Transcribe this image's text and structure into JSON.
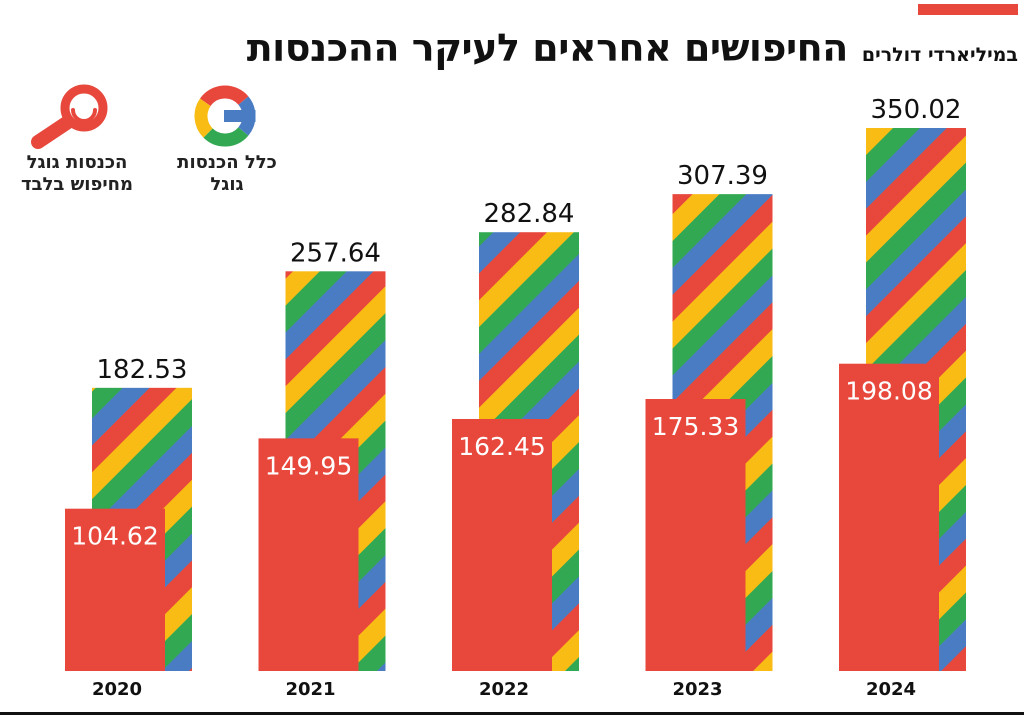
{
  "title": "החיפושים אחראים לעיקר ההכנסות",
  "subtitle": "במיליארדי דולרים",
  "colors": {
    "accent": "#E8473C",
    "search_red": "#E8473C",
    "stripe_red": "#E8473C",
    "stripe_yellow": "#F9BC15",
    "stripe_green": "#33A853",
    "stripe_blue": "#4A7CC4",
    "text": "#111111"
  },
  "legend": [
    {
      "label": "כלל הכנסות גוגל",
      "icon": "google-g-icon"
    },
    {
      "label": "הכנסות גוגל מחיפוש בלבד",
      "icon": "magnifier-icon"
    }
  ],
  "chart_data": {
    "type": "bar",
    "categories": [
      "2020",
      "2021",
      "2022",
      "2023",
      "2024"
    ],
    "series": [
      {
        "name": "כלל הכנסות גוגל",
        "values": [
          182.53,
          257.64,
          282.84,
          307.39,
          350.02
        ]
      },
      {
        "name": "הכנסות גוגל מחיפוש בלבד",
        "values": [
          104.62,
          149.95,
          162.45,
          175.33,
          198.08
        ]
      }
    ],
    "data_labels": {
      "total": [
        "182.53",
        "257.64",
        "282.84",
        "307.39",
        "350.02"
      ],
      "search": [
        "104.62",
        "149.95",
        "162.45",
        "175.33",
        "198.08"
      ]
    },
    "ylim": [
      0,
      350.02
    ],
    "grid": false,
    "legend_position": "top-left"
  }
}
